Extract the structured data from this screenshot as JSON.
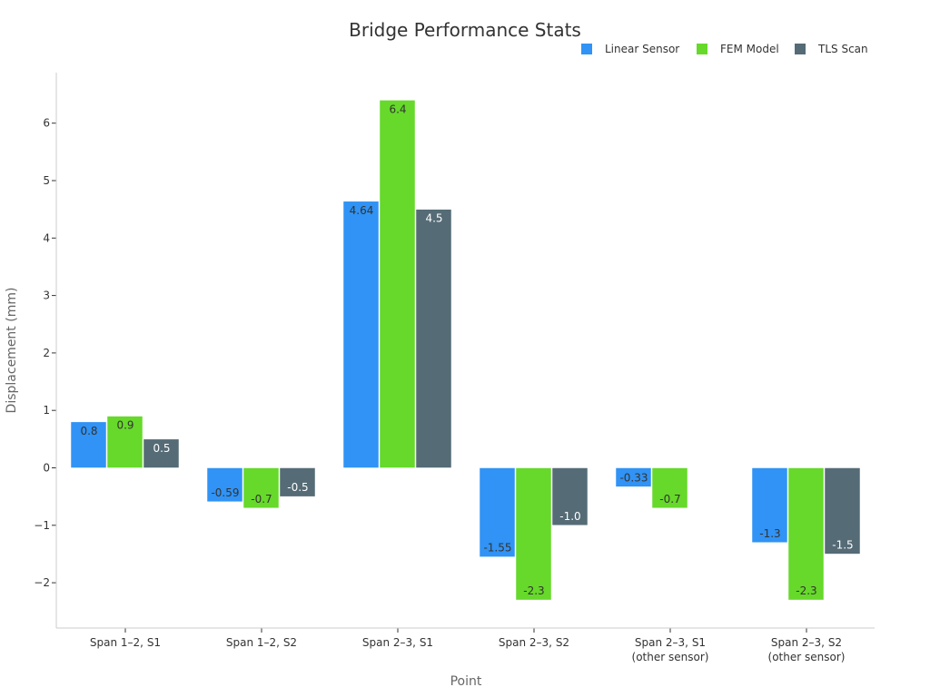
{
  "chart_data": {
    "type": "bar",
    "title": "Bridge Performance Stats",
    "xlabel": "Point",
    "ylabel": "Displacement (mm)",
    "ylim": [
      -2.75,
      6.9
    ],
    "yticks": [
      -2,
      -1,
      0,
      1,
      2,
      3,
      4,
      5,
      6
    ],
    "ytick_labels": [
      "−2",
      "−1",
      "0",
      "1",
      "2",
      "3",
      "4",
      "5",
      "6"
    ],
    "categories": [
      [
        "Span 1–2, S1"
      ],
      [
        "Span 1–2, S2"
      ],
      [
        "Span 2–3, S1"
      ],
      [
        "Span 2–3, S2"
      ],
      [
        "Span 2–3, S1",
        "(other sensor)"
      ],
      [
        "Span 2–3, S2",
        "(other sensor)"
      ]
    ],
    "legend_position": "top-right",
    "series": [
      {
        "name": "Linear Sensor",
        "color": "#3093f5",
        "label_color": "#333333",
        "values": [
          0.8,
          -0.59,
          4.64,
          -1.55,
          -0.33,
          -1.3
        ],
        "labels": [
          "0.8",
          "-0.59",
          "4.64",
          "-1.55",
          "-0.33",
          "-1.3"
        ]
      },
      {
        "name": "FEM Model",
        "color": "#66d92a",
        "label_color": "#333333",
        "values": [
          0.9,
          -0.7,
          6.4,
          -2.3,
          -0.7,
          -2.3
        ],
        "labels": [
          "0.9",
          "-0.7",
          "6.4",
          "-2.3",
          "-0.7",
          "-2.3"
        ]
      },
      {
        "name": "TLS Scan",
        "color": "#556b76",
        "label_color": "#ffffff",
        "values": [
          0.5,
          -0.5,
          4.5,
          -1.0,
          null,
          -1.5
        ],
        "labels": [
          "0.5",
          "-0.5",
          "4.5",
          "-1.0",
          "",
          "-1.5"
        ]
      }
    ]
  }
}
